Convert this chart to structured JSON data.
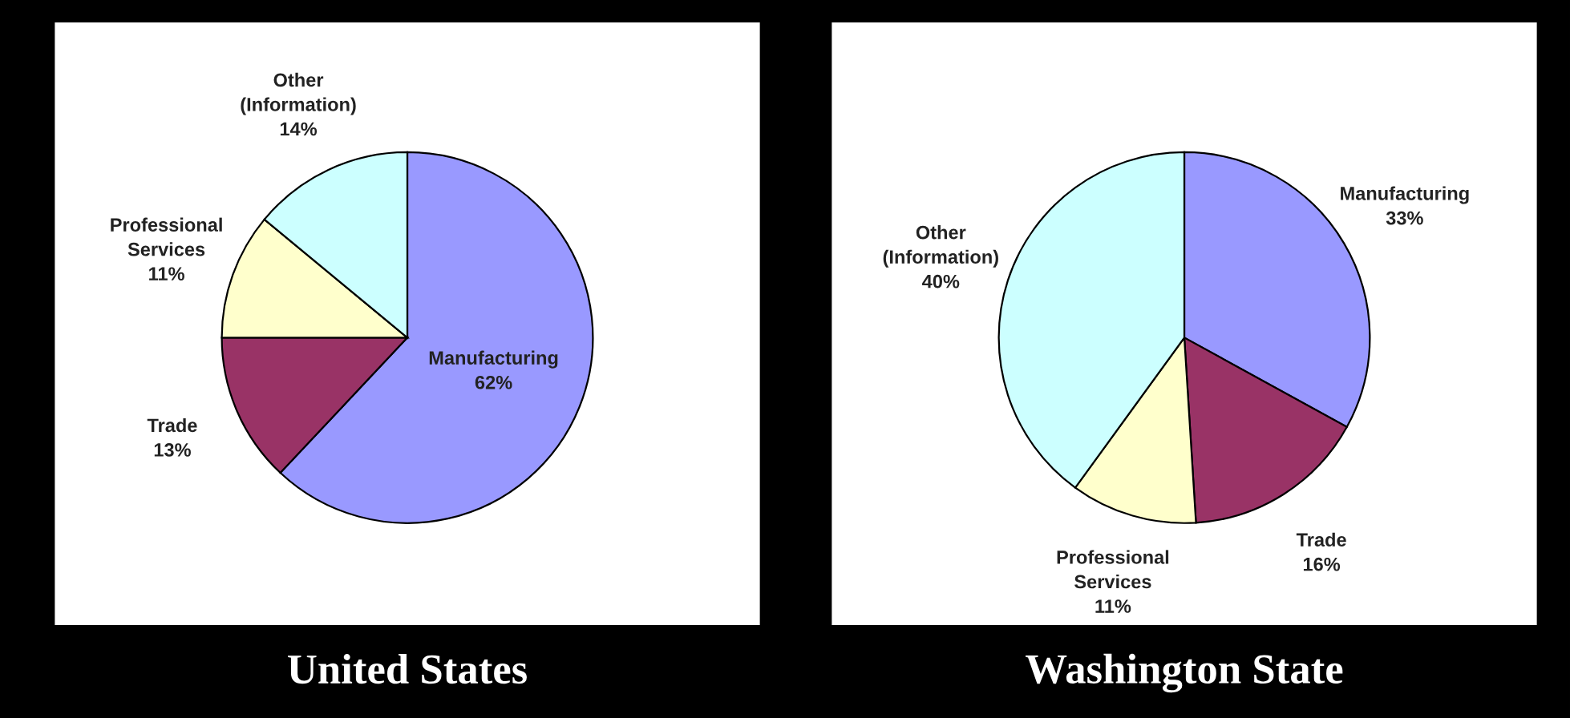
{
  "chart_data": [
    {
      "type": "pie",
      "title": "United States",
      "categories": [
        "Manufacturing",
        "Trade",
        "Professional Services",
        "Other (Information)"
      ],
      "values": [
        62,
        13,
        11,
        14
      ],
      "value_labels": [
        "62%",
        "13%",
        "11%",
        "14%"
      ],
      "colors": [
        "#9999ff",
        "#993366",
        "#ffffcc",
        "#ccffff"
      ]
    },
    {
      "type": "pie",
      "title": "Washington State",
      "categories": [
        "Manufacturing",
        "Trade",
        "Professional Services",
        "Other (Information)"
      ],
      "values": [
        33,
        16,
        11,
        40
      ],
      "value_labels": [
        "33%",
        "16%",
        "11%",
        "40%"
      ],
      "colors": [
        "#9999ff",
        "#993366",
        "#ffffcc",
        "#ccffff"
      ]
    }
  ]
}
